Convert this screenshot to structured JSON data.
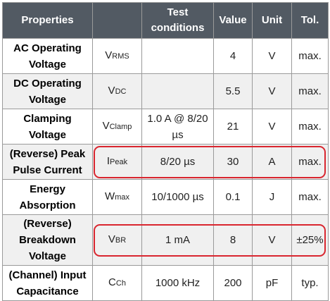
{
  "table": {
    "headers": [
      "Properties",
      "Test conditions",
      "Value",
      "Unit",
      "Tol."
    ],
    "rows": [
      {
        "property": "AC Operating Voltage",
        "symbol_main": "V",
        "symbol_sub": "RMS",
        "condition": "",
        "value": "4",
        "unit": "V",
        "tol": "max."
      },
      {
        "property": "DC Operating Voltage",
        "symbol_main": "V",
        "symbol_sub": "DC",
        "condition": "",
        "value": "5.5",
        "unit": "V",
        "tol": "max."
      },
      {
        "property": "Clamping Voltage",
        "symbol_main": "V",
        "symbol_sub": "Clamp",
        "condition": "1.0 A @ 8/20 µs",
        "value": "21",
        "unit": "V",
        "tol": "max."
      },
      {
        "property": "(Reverse) Peak Pulse Current",
        "symbol_main": "I",
        "symbol_sub": "Peak",
        "condition": "8/20 µs",
        "value": "30",
        "unit": "A",
        "tol": "max."
      },
      {
        "property": "Energy Absorption",
        "symbol_main": "W",
        "symbol_sub": "max",
        "condition": "10/1000 µs",
        "value": "0.1",
        "unit": "J",
        "tol": "max."
      },
      {
        "property": "(Reverse) Breakdown Voltage",
        "symbol_main": "V",
        "symbol_sub": "BR",
        "condition": "1 mA",
        "value": "8",
        "unit": "V",
        "tol": "±25%"
      },
      {
        "property": "(Channel) Input Capacitance",
        "symbol_main": "C",
        "symbol_sub": "Ch",
        "condition": "1000 kHz",
        "value": "200",
        "unit": "pF",
        "tol": "typ."
      }
    ]
  },
  "highlight_color": "#d9262f",
  "header_color": "#525a63"
}
